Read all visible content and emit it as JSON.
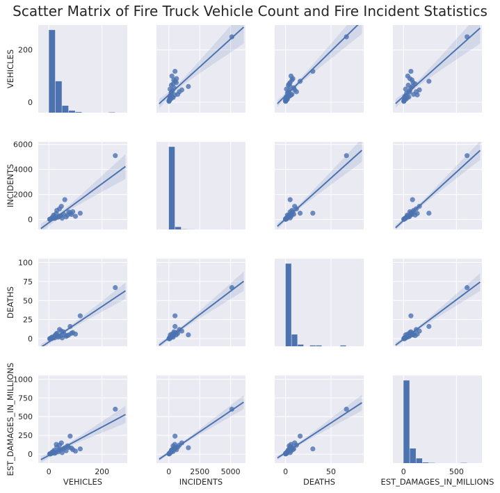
{
  "chart_data": {
    "type": "scatter",
    "title": "Scatter Matrix of Fire Truck Vehicle Count and Fire Incident Statistics",
    "variables": [
      "VEHICLES",
      "INCIDENTS",
      "DEATHS",
      "EST_DAMAGES_IN_MILLIONS"
    ],
    "axis_ranges": {
      "VEHICLES": [
        -40,
        295
      ],
      "INCIDENTS": [
        -800,
        6200
      ],
      "DEATHS": [
        -10,
        105
      ],
      "EST_DAMAGES_IN_MILLIONS": [
        -120,
        1050
      ]
    },
    "x_ranges": {
      "VEHICLES": [
        -40,
        295
      ],
      "INCIDENTS": [
        -1000,
        6200
      ],
      "DEATHS": [
        -12,
        86
      ],
      "EST_DAMAGES_IN_MILLIONS": [
        -100,
        740
      ]
    },
    "ticks": {
      "VEHICLES": [
        0,
        200,
        400
      ],
      "INCIDENTS": [
        0,
        2000,
        4000,
        6000
      ],
      "DEATHS": [
        0,
        25,
        50,
        75,
        100
      ],
      "EST_DAMAGES_IN_MILLIONS": [
        0,
        250,
        500,
        750,
        1000
      ]
    },
    "x_ticks": {
      "VEHICLES": [
        0,
        200
      ],
      "INCIDENTS": [
        0,
        2500,
        5000
      ],
      "DEATHS": [
        0,
        50
      ],
      "EST_DAMAGES_IN_MILLIONS": [
        0,
        500
      ]
    },
    "records": [
      {
        "VEHICLES": 250,
        "INCIDENTS": 5100,
        "DEATHS": 67,
        "EST_DAMAGES_IN_MILLIONS": 600
      },
      {
        "VEHICLES": 118,
        "INCIDENTS": 500,
        "DEATHS": 30,
        "EST_DAMAGES_IN_MILLIONS": 70
      },
      {
        "VEHICLES": 80,
        "INCIDENTS": 500,
        "DEATHS": 16,
        "EST_DAMAGES_IN_MILLIONS": 240
      },
      {
        "VEHICLES": 60,
        "INCIDENTS": 1580,
        "DEATHS": 5,
        "EST_DAMAGES_IN_MILLIONS": 85
      },
      {
        "VEHICLES": 47,
        "INCIDENTS": 1050,
        "DEATHS": 10,
        "EST_DAMAGES_IN_MILLIONS": 150
      },
      {
        "VEHICLES": 90,
        "INCIDENTS": 620,
        "DEATHS": 8,
        "EST_DAMAGES_IN_MILLIONS": 60
      },
      {
        "VEHICLES": 40,
        "INCIDENTS": 850,
        "DEATHS": 12,
        "EST_DAMAGES_IN_MILLIONS": 120
      },
      {
        "VEHICLES": 100,
        "INCIDENTS": 250,
        "DEATHS": 6,
        "EST_DAMAGES_IN_MILLIONS": 40
      },
      {
        "VEHICLES": 30,
        "INCIDENTS": 720,
        "DEATHS": 7,
        "EST_DAMAGES_IN_MILLIONS": 95
      },
      {
        "VEHICLES": 70,
        "INCIDENTS": 350,
        "DEATHS": 4,
        "EST_DAMAGES_IN_MILLIONS": 110
      },
      {
        "VEHICLES": 55,
        "INCIDENTS": 420,
        "DEATHS": 9,
        "EST_DAMAGES_IN_MILLIONS": 70
      },
      {
        "VEHICLES": 20,
        "INCIDENTS": 280,
        "DEATHS": 3,
        "EST_DAMAGES_IN_MILLIONS": 50
      },
      {
        "VEHICLES": 35,
        "INCIDENTS": 180,
        "DEATHS": 2,
        "EST_DAMAGES_IN_MILLIONS": 30
      },
      {
        "VEHICLES": 25,
        "INCIDENTS": 120,
        "DEATHS": 5,
        "EST_DAMAGES_IN_MILLIONS": 20
      },
      {
        "VEHICLES": 15,
        "INCIDENTS": 90,
        "DEATHS": 1,
        "EST_DAMAGES_IN_MILLIONS": 15
      },
      {
        "VEHICLES": 10,
        "INCIDENTS": 60,
        "DEATHS": 0,
        "EST_DAMAGES_IN_MILLIONS": 10
      },
      {
        "VEHICLES": 8,
        "INCIDENTS": 40,
        "DEATHS": 1,
        "EST_DAMAGES_IN_MILLIONS": 8
      },
      {
        "VEHICLES": 5,
        "INCIDENTS": 20,
        "DEATHS": 0,
        "EST_DAMAGES_IN_MILLIONS": 5
      },
      {
        "VEHICLES": 3,
        "INCIDENTS": 15,
        "DEATHS": 0,
        "EST_DAMAGES_IN_MILLIONS": 3
      },
      {
        "VEHICLES": 12,
        "INCIDENTS": 150,
        "DEATHS": 2,
        "EST_DAMAGES_IN_MILLIONS": 25
      },
      {
        "VEHICLES": 45,
        "INCIDENTS": 300,
        "DEATHS": 4,
        "EST_DAMAGES_IN_MILLIONS": 60
      },
      {
        "VEHICLES": 65,
        "INCIDENTS": 200,
        "DEATHS": 3,
        "EST_DAMAGES_IN_MILLIONS": 45
      },
      {
        "VEHICLES": 28,
        "INCIDENTS": 480,
        "DEATHS": 6,
        "EST_DAMAGES_IN_MILLIONS": 130
      },
      {
        "VEHICLES": 18,
        "INCIDENTS": 350,
        "DEATHS": 2,
        "EST_DAMAGES_IN_MILLIONS": 35
      },
      {
        "VEHICLES": 50,
        "INCIDENTS": 100,
        "DEATHS": 1,
        "EST_DAMAGES_IN_MILLIONS": 20
      },
      {
        "VEHICLES": 75,
        "INCIDENTS": 600,
        "DEATHS": 5,
        "EST_DAMAGES_IN_MILLIONS": 90
      },
      {
        "VEHICLES": 38,
        "INCIDENTS": 220,
        "DEATHS": 3,
        "EST_DAMAGES_IN_MILLIONS": 55
      },
      {
        "VEHICLES": 22,
        "INCIDENTS": 80,
        "DEATHS": 1,
        "EST_DAMAGES_IN_MILLIONS": 12
      },
      {
        "VEHICLES": 6,
        "INCIDENTS": 30,
        "DEATHS": 0,
        "EST_DAMAGES_IN_MILLIONS": 4
      },
      {
        "VEHICLES": 85,
        "INCIDENTS": 400,
        "DEATHS": 7,
        "EST_DAMAGES_IN_MILLIONS": 80
      }
    ],
    "histograms": {
      "VEHICLES": {
        "edges": [
          0,
          25,
          50,
          75,
          100,
          125,
          150,
          175,
          200,
          225,
          250,
          275
        ],
        "counts": [
          500,
          190,
          42,
          12,
          4,
          0,
          0,
          0,
          0,
          2,
          0
        ]
      },
      "INCIDENTS": {
        "edges": [
          0,
          510,
          1020,
          1530,
          2040,
          2550,
          3060,
          3570,
          4080,
          4590,
          5100
        ],
        "counts": [
          5900,
          180,
          15,
          5,
          0,
          0,
          0,
          0,
          0,
          2
        ]
      },
      "DEATHS": {
        "edges": [
          0,
          6.7,
          13.4,
          20.1,
          26.8,
          33.5,
          40.2,
          46.9,
          53.6,
          60.3,
          67
        ],
        "counts": [
          98,
          14,
          2,
          0,
          1,
          1,
          0,
          0,
          0,
          1
        ]
      },
      "EST_DAMAGES_IN_MILLIONS": {
        "edges": [
          0,
          60,
          120,
          180,
          240,
          300,
          360,
          420,
          480,
          540,
          600,
          660
        ],
        "counts": [
          960,
          170,
          55,
          8,
          3,
          0,
          0,
          0,
          0,
          3,
          0
        ]
      }
    },
    "grid": true,
    "point_color": "#4c72b0",
    "line_color": "#4c72b0",
    "panel_background": "#eaeaf2"
  }
}
